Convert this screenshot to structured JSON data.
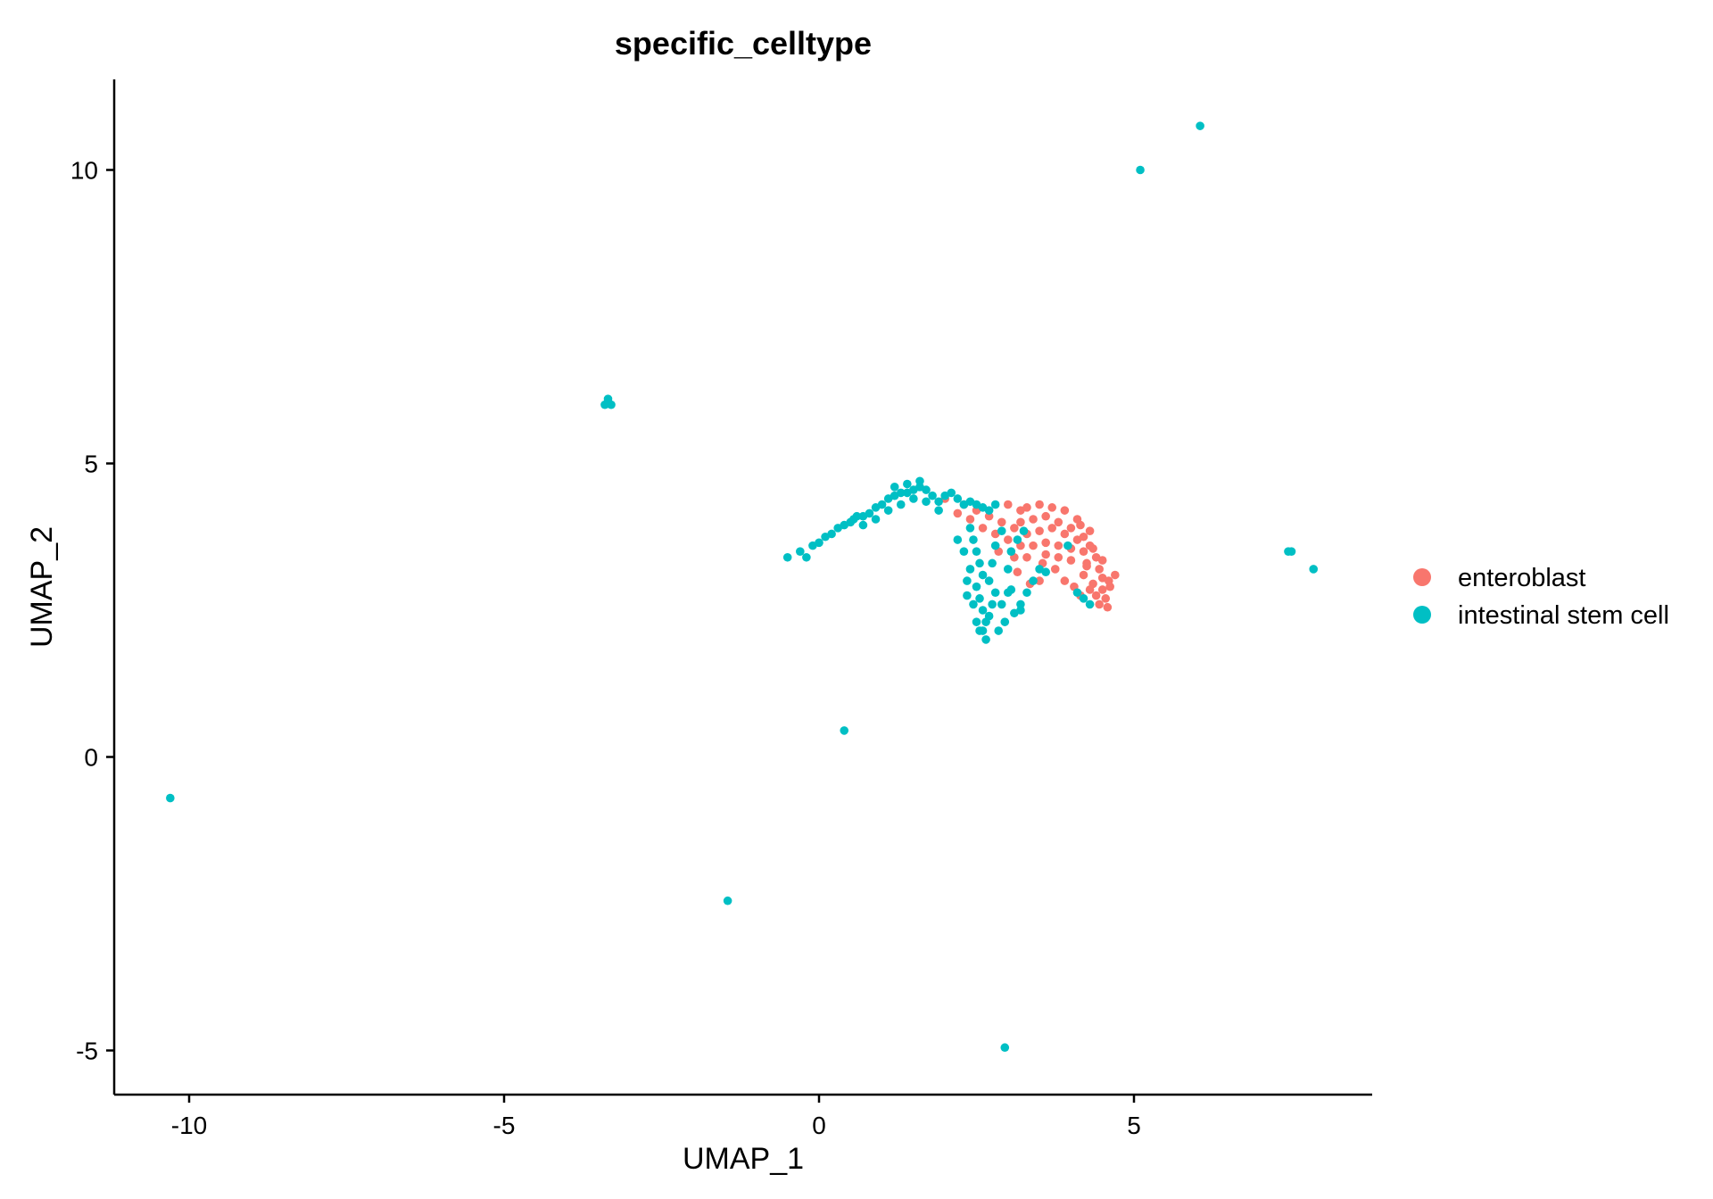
{
  "chart_data": {
    "type": "scatter",
    "title": "specific_celltype",
    "xlabel": "UMAP_1",
    "ylabel": "UMAP_2",
    "xlim": [
      -11.2,
      8.8
    ],
    "ylim": [
      -5.7,
      11.5
    ],
    "x_ticks": [
      -10,
      -5,
      0,
      5
    ],
    "x_tick_labels": [
      "-10",
      "-5",
      "0",
      "5"
    ],
    "y_ticks": [
      -5,
      0,
      5,
      10
    ],
    "y_tick_labels": [
      "-5",
      "0",
      "5",
      "10"
    ],
    "grid": false,
    "legend_position": "right",
    "series": [
      {
        "name": "enteroblast",
        "color": "#F8766D",
        "points": [
          [
            3.3,
            4.25
          ],
          [
            3.5,
            4.3
          ],
          [
            3.7,
            4.25
          ],
          [
            3.9,
            4.2
          ],
          [
            4.1,
            4.05
          ],
          [
            4.3,
            3.85
          ],
          [
            3.2,
            4.0
          ],
          [
            3.4,
            4.05
          ],
          [
            3.6,
            4.1
          ],
          [
            3.8,
            4.0
          ],
          [
            4.0,
            3.9
          ],
          [
            4.2,
            3.75
          ],
          [
            3.3,
            3.8
          ],
          [
            3.5,
            3.85
          ],
          [
            3.7,
            3.9
          ],
          [
            3.9,
            3.8
          ],
          [
            4.1,
            3.7
          ],
          [
            4.3,
            3.6
          ],
          [
            3.4,
            3.6
          ],
          [
            3.6,
            3.65
          ],
          [
            3.8,
            3.6
          ],
          [
            4.0,
            3.55
          ],
          [
            4.2,
            3.5
          ],
          [
            4.4,
            3.4
          ],
          [
            3.6,
            3.45
          ],
          [
            3.8,
            3.4
          ],
          [
            4.0,
            3.35
          ],
          [
            4.25,
            3.3
          ],
          [
            4.45,
            3.2
          ],
          [
            4.5,
            3.05
          ],
          [
            4.2,
            3.1
          ],
          [
            4.35,
            2.95
          ],
          [
            4.5,
            2.85
          ],
          [
            4.55,
            2.7
          ],
          [
            4.58,
            2.55
          ],
          [
            4.4,
            2.75
          ],
          [
            4.3,
            2.85
          ],
          [
            4.6,
            3.0
          ],
          [
            4.62,
            2.9
          ],
          [
            4.7,
            3.1
          ],
          [
            4.5,
            3.35
          ],
          [
            4.35,
            3.55
          ],
          [
            2.3,
            4.3
          ],
          [
            2.5,
            4.2
          ],
          [
            2.7,
            4.1
          ],
          [
            2.9,
            4.0
          ],
          [
            3.1,
            3.9
          ],
          [
            2.6,
            3.9
          ],
          [
            2.8,
            3.8
          ],
          [
            3.0,
            3.7
          ],
          [
            3.2,
            3.6
          ],
          [
            3.1,
            3.4
          ],
          [
            3.3,
            3.4
          ],
          [
            3.55,
            3.3
          ],
          [
            3.75,
            3.2
          ],
          [
            3.9,
            3.0
          ],
          [
            3.5,
            3.0
          ],
          [
            4.05,
            2.9
          ],
          [
            4.15,
            2.75
          ],
          [
            2.0,
            4.4
          ],
          [
            2.2,
            4.15
          ],
          [
            2.4,
            4.05
          ],
          [
            3.0,
            4.3
          ],
          [
            3.2,
            4.2
          ],
          [
            4.15,
            3.95
          ],
          [
            4.25,
            3.25
          ],
          [
            3.35,
            2.95
          ],
          [
            2.85,
            3.5
          ],
          [
            3.15,
            3.15
          ],
          [
            4.45,
            2.6
          ]
        ]
      },
      {
        "name": "intestinal stem cell",
        "color": "#00BFC4",
        "points": [
          [
            -0.5,
            3.4
          ],
          [
            -0.3,
            3.5
          ],
          [
            -0.2,
            3.4
          ],
          [
            -0.1,
            3.6
          ],
          [
            0.0,
            3.65
          ],
          [
            0.1,
            3.75
          ],
          [
            0.2,
            3.8
          ],
          [
            0.3,
            3.9
          ],
          [
            0.4,
            3.95
          ],
          [
            0.5,
            4.0
          ],
          [
            0.55,
            4.05
          ],
          [
            0.6,
            4.1
          ],
          [
            0.7,
            4.1
          ],
          [
            0.8,
            4.15
          ],
          [
            0.9,
            4.25
          ],
          [
            1.0,
            4.3
          ],
          [
            1.1,
            4.4
          ],
          [
            1.2,
            4.45
          ],
          [
            1.3,
            4.5
          ],
          [
            1.4,
            4.5
          ],
          [
            1.5,
            4.55
          ],
          [
            1.6,
            4.6
          ],
          [
            1.7,
            4.55
          ],
          [
            1.8,
            4.45
          ],
          [
            1.9,
            4.35
          ],
          [
            2.0,
            4.45
          ],
          [
            2.1,
            4.5
          ],
          [
            2.2,
            4.4
          ],
          [
            2.3,
            4.3
          ],
          [
            2.4,
            4.35
          ],
          [
            2.5,
            4.3
          ],
          [
            2.6,
            4.25
          ],
          [
            2.7,
            4.2
          ],
          [
            2.8,
            4.3
          ],
          [
            0.7,
            3.95
          ],
          [
            0.9,
            4.05
          ],
          [
            1.1,
            4.2
          ],
          [
            1.3,
            4.3
          ],
          [
            1.5,
            4.4
          ],
          [
            1.7,
            4.35
          ],
          [
            1.9,
            4.2
          ],
          [
            1.2,
            4.6
          ],
          [
            1.4,
            4.65
          ],
          [
            1.6,
            4.7
          ],
          [
            2.4,
            3.9
          ],
          [
            2.45,
            3.7
          ],
          [
            2.5,
            3.5
          ],
          [
            2.55,
            3.3
          ],
          [
            2.6,
            3.1
          ],
          [
            2.5,
            2.9
          ],
          [
            2.55,
            2.7
          ],
          [
            2.6,
            2.5
          ],
          [
            2.65,
            2.3
          ],
          [
            2.6,
            2.15
          ],
          [
            2.65,
            2.0
          ],
          [
            2.7,
            2.4
          ],
          [
            2.75,
            2.6
          ],
          [
            2.8,
            2.8
          ],
          [
            2.4,
            3.2
          ],
          [
            2.35,
            3.0
          ],
          [
            2.45,
            2.6
          ],
          [
            2.5,
            2.3
          ],
          [
            2.7,
            3.0
          ],
          [
            2.75,
            3.3
          ],
          [
            2.8,
            3.6
          ],
          [
            2.9,
            3.85
          ],
          [
            3.0,
            3.2
          ],
          [
            3.05,
            3.5
          ],
          [
            3.15,
            3.7
          ],
          [
            2.9,
            2.6
          ],
          [
            3.0,
            2.8
          ],
          [
            2.95,
            2.3
          ],
          [
            3.1,
            2.45
          ],
          [
            3.2,
            2.6
          ],
          [
            3.2,
            2.5
          ],
          [
            3.3,
            2.8
          ],
          [
            3.4,
            3.0
          ],
          [
            3.5,
            3.2
          ],
          [
            3.6,
            3.15
          ],
          [
            2.3,
            3.5
          ],
          [
            2.2,
            3.7
          ],
          [
            2.35,
            2.75
          ],
          [
            2.55,
            2.15
          ],
          [
            4.1,
            2.8
          ],
          [
            4.2,
            2.7
          ],
          [
            4.3,
            2.6
          ],
          [
            3.95,
            3.6
          ],
          [
            3.25,
            3.85
          ],
          [
            2.85,
            2.15
          ],
          [
            3.05,
            2.85
          ],
          [
            -3.4,
            6.0
          ],
          [
            -3.35,
            6.1
          ],
          [
            -3.3,
            6.0
          ],
          [
            -3.35,
            6.05
          ],
          [
            5.1,
            10.0
          ],
          [
            6.05,
            10.75
          ],
          [
            7.45,
            3.5
          ],
          [
            7.5,
            3.5
          ],
          [
            7.85,
            3.2
          ],
          [
            0.4,
            0.45
          ],
          [
            -10.3,
            -0.7
          ],
          [
            -1.45,
            -2.45
          ],
          [
            2.95,
            -4.95
          ]
        ]
      }
    ]
  }
}
